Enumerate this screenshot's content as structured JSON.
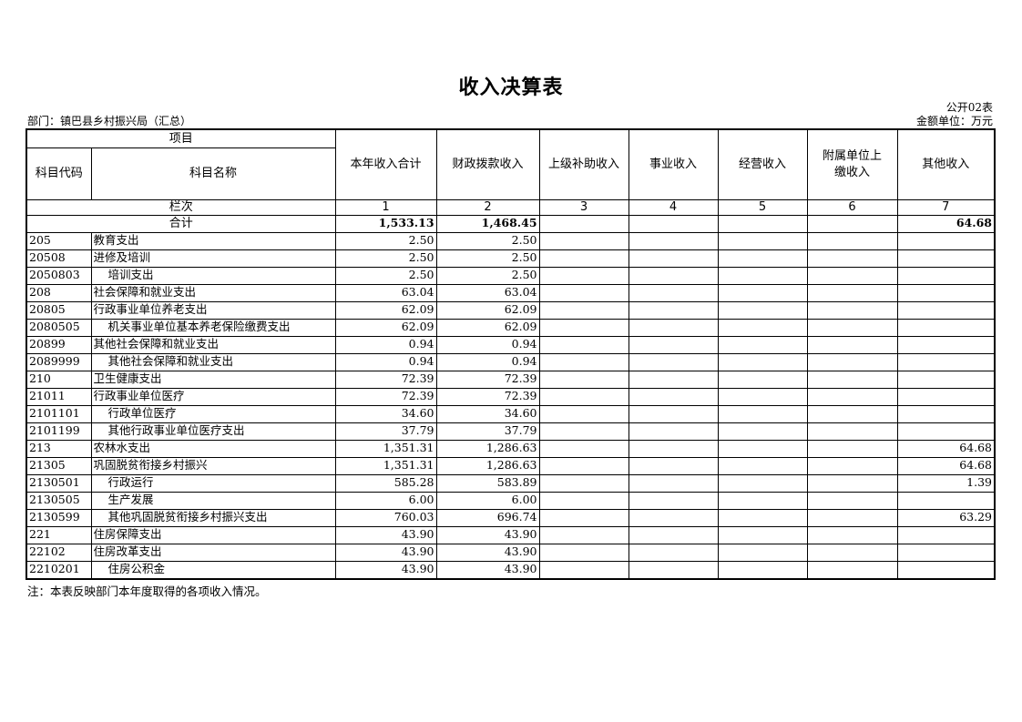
{
  "title": "收入决算表",
  "form_no": "公开02表",
  "department": "部门：镇巴县乡村振兴局（汇总）",
  "unit": "金额单位：万元",
  "header": {
    "item": "项目",
    "code": "科目代码",
    "name": "科目名称",
    "columns": [
      "本年收入合计",
      "财政拨款收入",
      "上级补助收入",
      "事业收入",
      "经营收入",
      "附属单位上缴收入",
      "其他收入"
    ],
    "column_line": "栏次",
    "column_numbers": [
      "1",
      "2",
      "3",
      "4",
      "5",
      "6",
      "7"
    ]
  },
  "total": {
    "label": "合计",
    "values": [
      "1,533.13",
      "1,468.45",
      "",
      "",
      "",
      "",
      "64.68"
    ]
  },
  "rows": [
    {
      "code": "205",
      "name": "教育支出",
      "indent": false,
      "values": [
        "2.50",
        "2.50",
        "",
        "",
        "",
        "",
        ""
      ]
    },
    {
      "code": "20508",
      "name": "进修及培训",
      "indent": false,
      "values": [
        "2.50",
        "2.50",
        "",
        "",
        "",
        "",
        ""
      ]
    },
    {
      "code": "2050803",
      "name": "培训支出",
      "indent": true,
      "values": [
        "2.50",
        "2.50",
        "",
        "",
        "",
        "",
        ""
      ]
    },
    {
      "code": "208",
      "name": "社会保障和就业支出",
      "indent": false,
      "values": [
        "63.04",
        "63.04",
        "",
        "",
        "",
        "",
        ""
      ]
    },
    {
      "code": "20805",
      "name": "行政事业单位养老支出",
      "indent": false,
      "values": [
        "62.09",
        "62.09",
        "",
        "",
        "",
        "",
        ""
      ]
    },
    {
      "code": "2080505",
      "name": "机关事业单位基本养老保险缴费支出",
      "indent": true,
      "values": [
        "62.09",
        "62.09",
        "",
        "",
        "",
        "",
        ""
      ]
    },
    {
      "code": "20899",
      "name": "其他社会保障和就业支出",
      "indent": false,
      "values": [
        "0.94",
        "0.94",
        "",
        "",
        "",
        "",
        ""
      ]
    },
    {
      "code": "2089999",
      "name": "其他社会保障和就业支出",
      "indent": true,
      "values": [
        "0.94",
        "0.94",
        "",
        "",
        "",
        "",
        ""
      ]
    },
    {
      "code": "210",
      "name": "卫生健康支出",
      "indent": false,
      "values": [
        "72.39",
        "72.39",
        "",
        "",
        "",
        "",
        ""
      ]
    },
    {
      "code": "21011",
      "name": "行政事业单位医疗",
      "indent": false,
      "values": [
        "72.39",
        "72.39",
        "",
        "",
        "",
        "",
        ""
      ]
    },
    {
      "code": "2101101",
      "name": "行政单位医疗",
      "indent": true,
      "values": [
        "34.60",
        "34.60",
        "",
        "",
        "",
        "",
        ""
      ]
    },
    {
      "code": "2101199",
      "name": "其他行政事业单位医疗支出",
      "indent": true,
      "values": [
        "37.79",
        "37.79",
        "",
        "",
        "",
        "",
        ""
      ]
    },
    {
      "code": "213",
      "name": "农林水支出",
      "indent": false,
      "values": [
        "1,351.31",
        "1,286.63",
        "",
        "",
        "",
        "",
        "64.68"
      ]
    },
    {
      "code": "21305",
      "name": "巩固脱贫衔接乡村振兴",
      "indent": false,
      "values": [
        "1,351.31",
        "1,286.63",
        "",
        "",
        "",
        "",
        "64.68"
      ]
    },
    {
      "code": "2130501",
      "name": "行政运行",
      "indent": true,
      "values": [
        "585.28",
        "583.89",
        "",
        "",
        "",
        "",
        "1.39"
      ]
    },
    {
      "code": "2130505",
      "name": "生产发展",
      "indent": true,
      "values": [
        "6.00",
        "6.00",
        "",
        "",
        "",
        "",
        ""
      ]
    },
    {
      "code": "2130599",
      "name": "其他巩固脱贫衔接乡村振兴支出",
      "indent": true,
      "values": [
        "760.03",
        "696.74",
        "",
        "",
        "",
        "",
        "63.29"
      ]
    },
    {
      "code": "221",
      "name": "住房保障支出",
      "indent": false,
      "values": [
        "43.90",
        "43.90",
        "",
        "",
        "",
        "",
        ""
      ]
    },
    {
      "code": "22102",
      "name": "住房改革支出",
      "indent": false,
      "values": [
        "43.90",
        "43.90",
        "",
        "",
        "",
        "",
        ""
      ]
    },
    {
      "code": "2210201",
      "name": "住房公积金",
      "indent": true,
      "values": [
        "43.90",
        "43.90",
        "",
        "",
        "",
        "",
        ""
      ]
    }
  ],
  "note": "注：本表反映部门本年度取得的各项收入情况。"
}
